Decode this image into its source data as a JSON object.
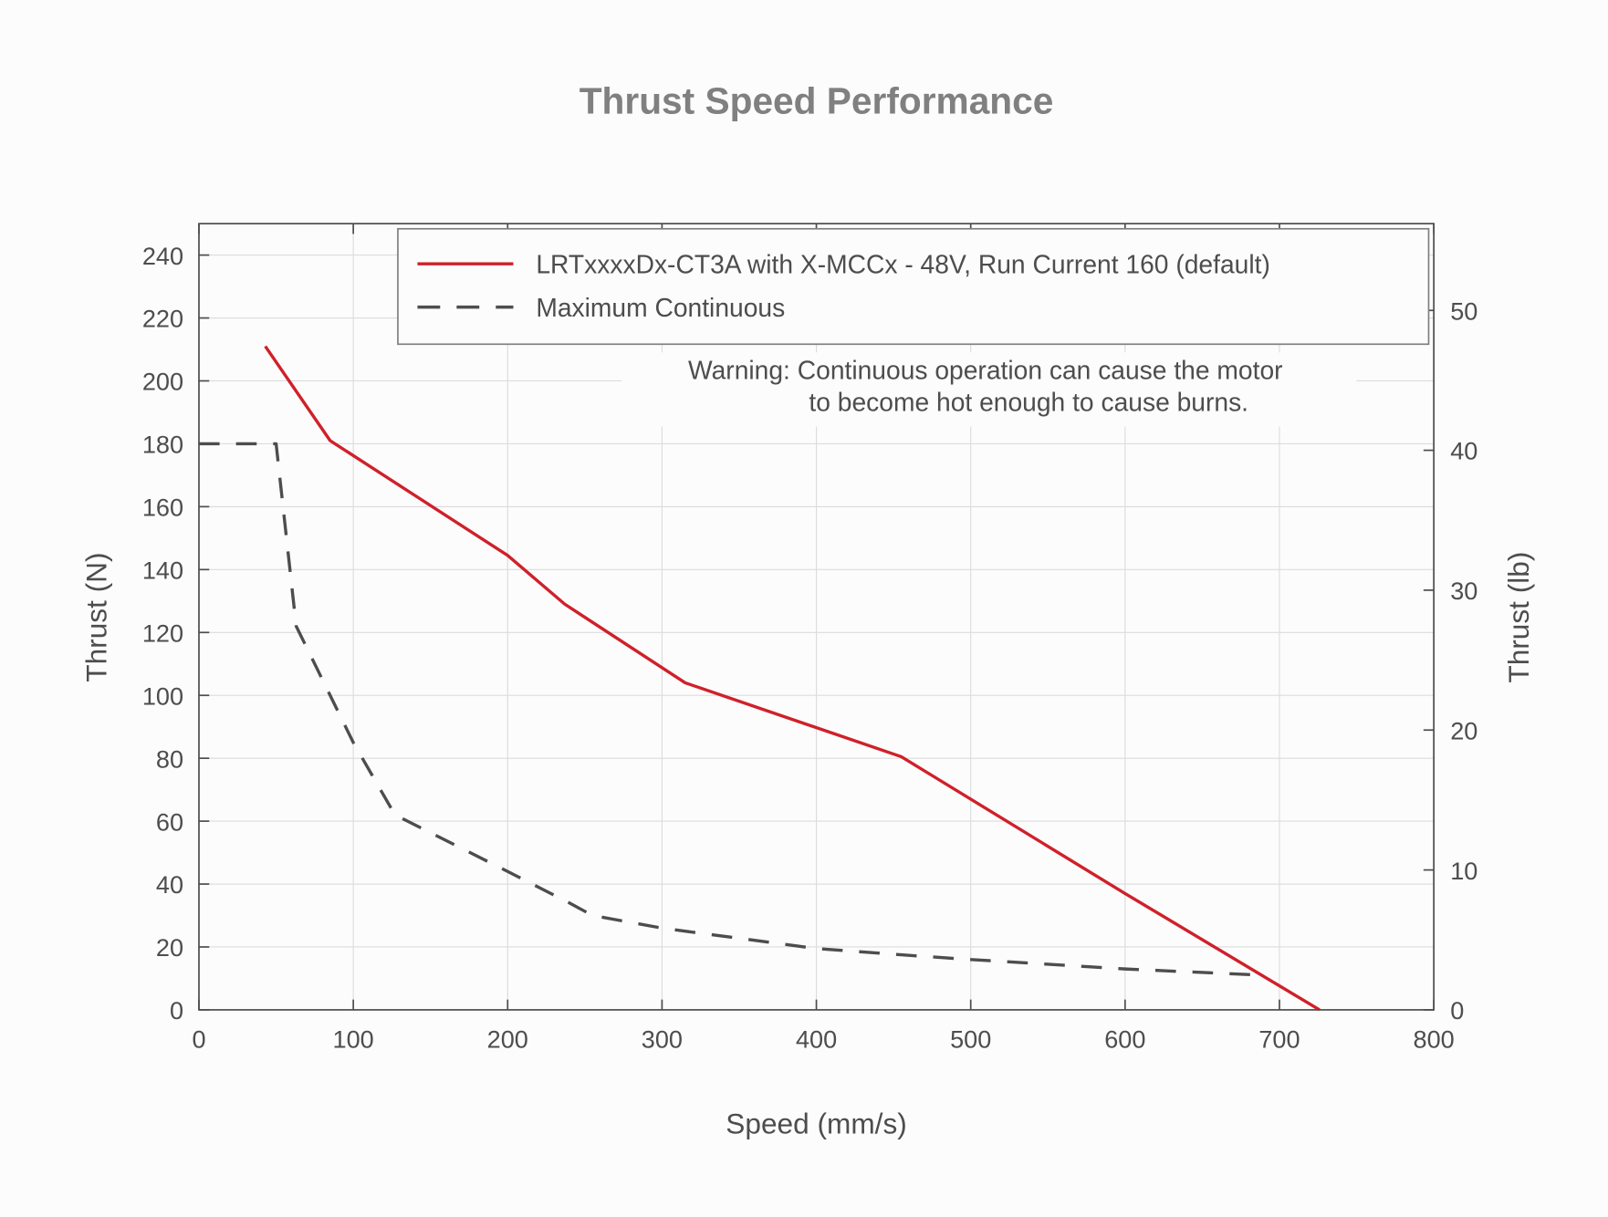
{
  "chart_data": {
    "type": "line",
    "title": "Thrust Speed Performance",
    "xlabel": "Speed (mm/s)",
    "ylabel": "Thrust (N)",
    "y2label": "Thrust (lb)",
    "xlim": [
      0,
      800
    ],
    "ylim": [
      0,
      250
    ],
    "y2lim": [
      0,
      56.2
    ],
    "xticks": [
      0,
      100,
      200,
      300,
      400,
      500,
      600,
      700,
      800
    ],
    "yticks": [
      0,
      20,
      40,
      60,
      80,
      100,
      120,
      140,
      160,
      180,
      200,
      220,
      240
    ],
    "y2ticks": [
      0,
      10,
      20,
      30,
      40,
      50
    ],
    "grid": true,
    "legend_position": "top-right",
    "annotation": [
      "Warning: Continuous operation can cause the motor",
      "to become hot enough to cause burns."
    ],
    "series": [
      {
        "name": "LRTxxxxDx-CT3A with X-MCCx - 48V, Run Current 160 (default)",
        "color": "#d0202a",
        "style": "solid",
        "x": [
          43,
          85,
          200,
          237,
          315,
          455,
          600,
          726
        ],
        "y": [
          211,
          181,
          144.5,
          129,
          104,
          80.5,
          37,
          0
        ]
      },
      {
        "name": "Maximum Continuous",
        "color": "#4d4d4d",
        "style": "dashed",
        "x": [
          0,
          50,
          63,
          100,
          127,
          200,
          240,
          255,
          300,
          400,
          455,
          500,
          600,
          690
        ],
        "y": [
          180,
          180,
          122,
          85,
          62,
          44,
          34,
          30,
          26,
          19.5,
          17.5,
          16,
          13,
          11
        ]
      }
    ]
  }
}
